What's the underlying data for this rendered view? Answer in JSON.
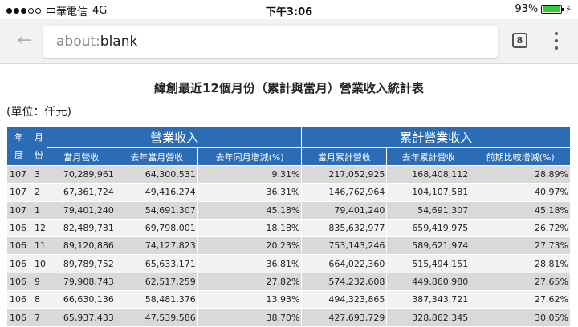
{
  "status_bar": {
    "carrier": "中華電信",
    "network": "4G",
    "time": "下午3:06",
    "battery_percent": "93%",
    "battery_level": 0.93,
    "battery_color": "#37c837"
  },
  "browser": {
    "url_scheme": "about:",
    "url_host": "blank",
    "tab_count": "8",
    "back_icon": "arrow-left-icon",
    "menu_icon": "overflow-menu-icon"
  },
  "page": {
    "title": "緯創最近12個月份（累計與當月）營業收入統計表",
    "unit": "(單位：仟元)",
    "header_color": "#2b6cb5",
    "table": {
      "year_header": [
        "年",
        "度"
      ],
      "month_header": [
        "月",
        "份"
      ],
      "group_monthly": "營業收入",
      "group_cumulative": "累計營業收入",
      "columns": [
        "當月營收",
        "去年當月營收",
        "去年同月增減(%)",
        "當月累計營收",
        "去年累計營收",
        "前期比較增減(%)"
      ],
      "rows": [
        {
          "year": "107",
          "month": "3",
          "cells": [
            "70,289,961",
            "64,300,531",
            "9.31%",
            "217,052,925",
            "168,408,112",
            "28.89%"
          ]
        },
        {
          "year": "107",
          "month": "2",
          "cells": [
            "67,361,724",
            "49,416,274",
            "36.31%",
            "146,762,964",
            "104,107,581",
            "40.97%"
          ]
        },
        {
          "year": "107",
          "month": "1",
          "cells": [
            "79,401,240",
            "54,691,307",
            "45.18%",
            "79,401,240",
            "54,691,307",
            "45.18%"
          ]
        },
        {
          "year": "106",
          "month": "12",
          "cells": [
            "82,489,731",
            "69,798,001",
            "18.18%",
            "835,632,977",
            "659,419,975",
            "26.72%"
          ]
        },
        {
          "year": "106",
          "month": "11",
          "cells": [
            "89,120,886",
            "74,127,823",
            "20.23%",
            "753,143,246",
            "589,621,974",
            "27.73%"
          ]
        },
        {
          "year": "106",
          "month": "10",
          "cells": [
            "89,789,752",
            "65,633,171",
            "36.81%",
            "664,022,360",
            "515,494,151",
            "28.81%"
          ]
        },
        {
          "year": "106",
          "month": "9",
          "cells": [
            "79,908,743",
            "62,517,259",
            "27.82%",
            "574,232,608",
            "449,860,980",
            "27.65%"
          ]
        },
        {
          "year": "106",
          "month": "8",
          "cells": [
            "66,630,136",
            "58,481,376",
            "13.93%",
            "494,323,865",
            "387,343,721",
            "27.62%"
          ]
        },
        {
          "year": "106",
          "month": "7",
          "cells": [
            "65,937,433",
            "47,539,586",
            "38.70%",
            "427,693,729",
            "328,862,345",
            "30.05%"
          ]
        }
      ]
    }
  }
}
